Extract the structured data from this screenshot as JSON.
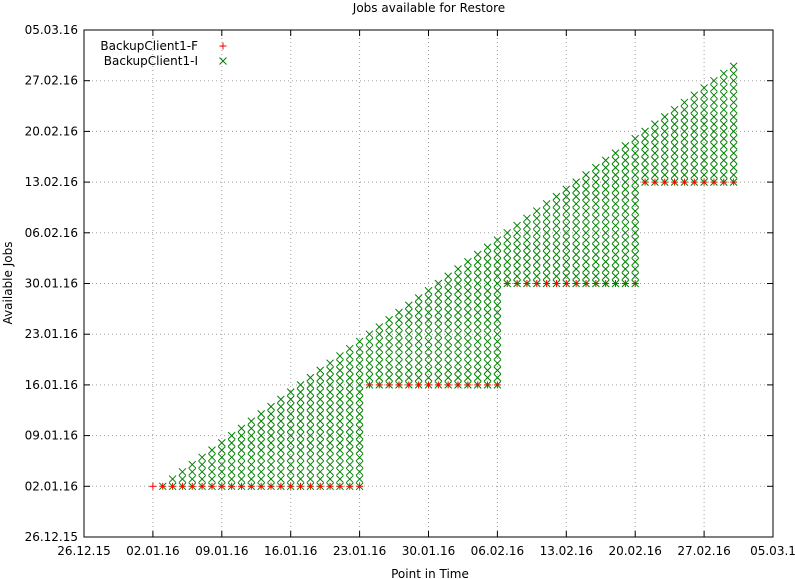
{
  "chart_data": {
    "type": "scatter",
    "title": "Jobs available for Restore",
    "xlabel": "Point in Time",
    "ylabel": "Available Jobs",
    "x_ticks": [
      "26.12.15",
      "02.01.16",
      "09.01.16",
      "16.01.16",
      "23.01.16",
      "30.01.16",
      "06.02.16",
      "13.02.16",
      "20.02.16",
      "27.02.16",
      "05.03.1"
    ],
    "y_ticks": [
      "26.12.15",
      "02.01.16",
      "09.01.16",
      "16.01.16",
      "23.01.16",
      "30.01.16",
      "06.02.16",
      "13.02.16",
      "20.02.16",
      "27.02.16",
      "05.03.16"
    ],
    "xlim": [
      "2015-12-26",
      "2016-03-05"
    ],
    "ylim": [
      "2015-12-26",
      "2016-03-05"
    ],
    "grid": true,
    "legend_position": "top-left",
    "series": [
      {
        "name": "BackupClient1-F",
        "marker": "plus",
        "color": "#ff0000",
        "segments": [
          {
            "x_from": "2016-01-02",
            "x_to": "2016-01-23",
            "y": "2016-01-02"
          },
          {
            "x_from": "2016-01-24",
            "x_to": "2016-02-06",
            "y": "2016-01-16"
          },
          {
            "x_from": "2016-02-07",
            "x_to": "2016-02-20",
            "y": "2016-01-30"
          },
          {
            "x_from": "2016-02-21",
            "x_to": "2016-03-01",
            "y": "2016-02-13"
          }
        ]
      },
      {
        "name": "BackupClient1-I",
        "marker": "cross",
        "color": "#008000",
        "x_from": "2016-01-03",
        "x_to": "2016-03-01",
        "y_lower": "latest full backup date",
        "y_upper": "point in time minus one day"
      }
    ]
  }
}
